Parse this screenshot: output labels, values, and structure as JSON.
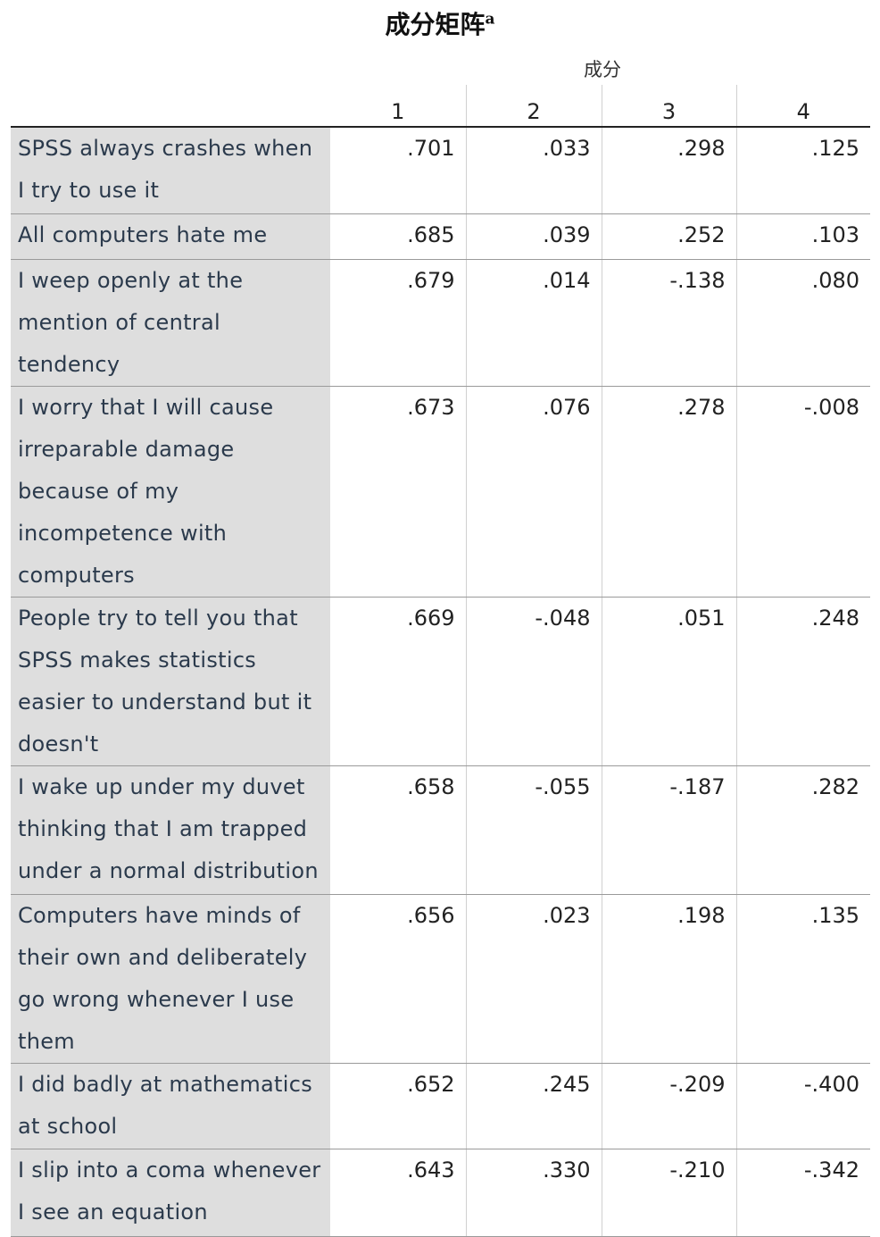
{
  "title": {
    "text": "成分矩阵",
    "superscript": "a"
  },
  "columns": {
    "group": "成分",
    "labels": [
      1,
      2,
      3,
      4
    ]
  },
  "rows": [
    {
      "label": "SPSS always crashes when I try to use it",
      "values": [
        ".701",
        ".033",
        ".298",
        ".125"
      ]
    },
    {
      "label": "All computers hate me",
      "values": [
        ".685",
        ".039",
        ".252",
        ".103"
      ]
    },
    {
      "label": "I weep openly at the mention of central tendency",
      "values": [
        ".679",
        ".014",
        "-.138",
        ".080"
      ]
    },
    {
      "label": "I worry that I will cause irreparable damage because of my incompetence with computers",
      "values": [
        ".673",
        ".076",
        ".278",
        "-.008"
      ]
    },
    {
      "label": "People try to tell you that SPSS makes statistics easier to understand but it doesn't",
      "values": [
        ".669",
        "-.048",
        ".051",
        ".248"
      ]
    },
    {
      "label": "I wake up under my duvet thinking that I am trapped under a normal distribution",
      "values": [
        ".658",
        "-.055",
        "-.187",
        ".282"
      ]
    },
    {
      "label": "Computers have minds of their own and deliberately go wrong whenever I use them",
      "values": [
        ".656",
        ".023",
        ".198",
        ".135"
      ]
    },
    {
      "label": "I did badly at mathematics at school",
      "values": [
        ".652",
        ".245",
        "-.209",
        "-.400"
      ]
    },
    {
      "label": "I slip into a coma whenever I see an equation",
      "values": [
        ".643",
        ".330",
        "-.210",
        "-.342"
      ]
    }
  ]
}
